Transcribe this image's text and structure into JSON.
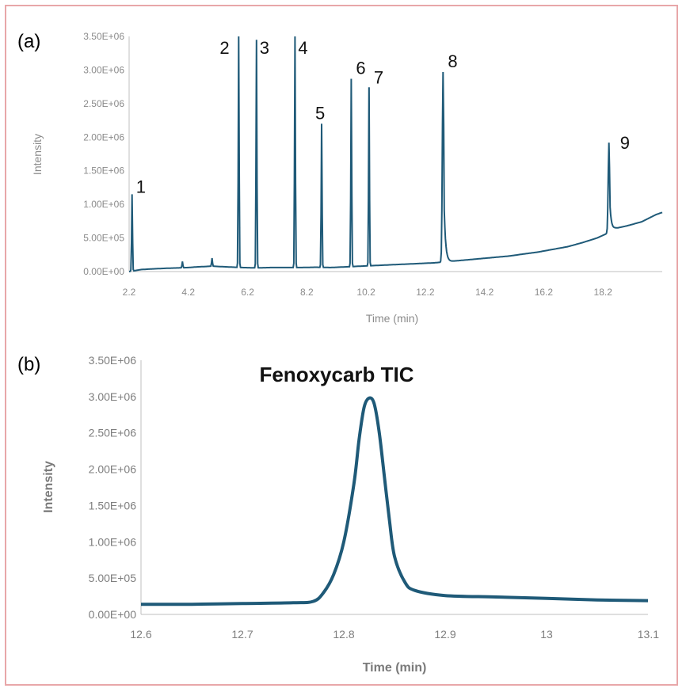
{
  "panels": {
    "a_label": "(a)",
    "b_label": "(b)"
  },
  "colors": {
    "line": "#1f5a78",
    "axis": "#bfbfbf",
    "frame": "#e8a7a9"
  },
  "chart_data": [
    {
      "type": "line",
      "panel": "(a)",
      "title": "",
      "xlabel": "Time (min)",
      "ylabel": "Intensity",
      "xlim": [
        2.2,
        20.2
      ],
      "ylim": [
        0,
        3500000
      ],
      "x_ticks": [
        2.2,
        4.2,
        6.2,
        8.2,
        10.2,
        12.2,
        14.2,
        16.2,
        18.2
      ],
      "x_tick_labels": [
        "2.2",
        "4.2",
        "6.2",
        "8.2",
        "10.2",
        "12.2",
        "14.2",
        "16.2",
        "18.2"
      ],
      "y_ticks": [
        0,
        500000,
        1000000,
        1500000,
        2000000,
        2500000,
        3000000,
        3500000
      ],
      "y_tick_labels": [
        "0.00E+00",
        "5.00E+05",
        "1.00E+06",
        "1.50E+06",
        "2.00E+06",
        "2.50E+06",
        "3.00E+06",
        "3.50E+06"
      ],
      "baseline": [
        [
          2.2,
          0
        ],
        [
          2.6,
          30000
        ],
        [
          3.0,
          40000
        ],
        [
          3.5,
          50000
        ],
        [
          3.9,
          55000
        ],
        [
          4.2,
          60000
        ],
        [
          4.5,
          70000
        ],
        [
          5.0,
          80000
        ],
        [
          5.5,
          70000
        ],
        [
          6.0,
          60000
        ],
        [
          6.5,
          55000
        ],
        [
          7.0,
          60000
        ],
        [
          7.5,
          60000
        ],
        [
          8.0,
          60000
        ],
        [
          8.5,
          65000
        ],
        [
          9.0,
          60000
        ],
        [
          9.5,
          70000
        ],
        [
          10.0,
          80000
        ],
        [
          10.5,
          90000
        ],
        [
          11.0,
          100000
        ],
        [
          11.5,
          110000
        ],
        [
          12.0,
          120000
        ],
        [
          12.5,
          130000
        ],
        [
          13.0,
          150000
        ],
        [
          13.5,
          170000
        ],
        [
          14.0,
          190000
        ],
        [
          14.5,
          210000
        ],
        [
          15.0,
          230000
        ],
        [
          15.5,
          260000
        ],
        [
          16.0,
          290000
        ],
        [
          16.5,
          330000
        ],
        [
          17.0,
          370000
        ],
        [
          17.5,
          430000
        ],
        [
          18.0,
          500000
        ],
        [
          18.3,
          560000
        ],
        [
          18.6,
          640000
        ],
        [
          19.0,
          680000
        ],
        [
          19.5,
          740000
        ],
        [
          20.0,
          850000
        ],
        [
          20.2,
          880000
        ]
      ],
      "minor_peaks": [
        {
          "x": 4.0,
          "y": 150000
        },
        {
          "x": 5.0,
          "y": 200000
        }
      ],
      "peaks": [
        {
          "label": "1",
          "x": 2.3,
          "y": 1150000
        },
        {
          "label": "2",
          "x": 5.9,
          "y": 3500000
        },
        {
          "label": "3",
          "x": 6.5,
          "y": 3450000
        },
        {
          "label": "4",
          "x": 7.8,
          "y": 3500000
        },
        {
          "label": "5",
          "x": 8.7,
          "y": 2200000
        },
        {
          "label": "6",
          "x": 9.7,
          "y": 2870000
        },
        {
          "label": "7",
          "x": 10.3,
          "y": 2730000
        },
        {
          "label": "8",
          "x": 12.8,
          "y": 2970000
        },
        {
          "label": "9",
          "x": 18.4,
          "y": 1920000
        }
      ]
    },
    {
      "type": "line",
      "panel": "(b)",
      "title": "Fenoxycarb TIC",
      "xlabel": "Time (min)",
      "ylabel": "Intensity",
      "xlim": [
        12.6,
        13.1
      ],
      "ylim": [
        0,
        3500000
      ],
      "x_ticks": [
        12.6,
        12.7,
        12.8,
        12.9,
        13.0,
        13.1
      ],
      "x_tick_labels": [
        "12.6",
        "12.7",
        "12.8",
        "12.9",
        "13",
        "13.1"
      ],
      "y_ticks": [
        0,
        500000,
        1000000,
        1500000,
        2000000,
        2500000,
        3000000,
        3500000
      ],
      "y_tick_labels": [
        "0.00E+00",
        "5.00E+05",
        "1.00E+06",
        "1.50E+06",
        "2.00E+06",
        "2.50E+06",
        "3.00E+06",
        "3.50E+06"
      ],
      "points": [
        [
          12.6,
          140000
        ],
        [
          12.65,
          140000
        ],
        [
          12.7,
          150000
        ],
        [
          12.75,
          160000
        ],
        [
          12.77,
          180000
        ],
        [
          12.78,
          300000
        ],
        [
          12.79,
          550000
        ],
        [
          12.8,
          1000000
        ],
        [
          12.81,
          1800000
        ],
        [
          12.815,
          2400000
        ],
        [
          12.82,
          2850000
        ],
        [
          12.825,
          2980000
        ],
        [
          12.83,
          2900000
        ],
        [
          12.835,
          2500000
        ],
        [
          12.84,
          1900000
        ],
        [
          12.845,
          1300000
        ],
        [
          12.85,
          800000
        ],
        [
          12.86,
          450000
        ],
        [
          12.87,
          330000
        ],
        [
          12.9,
          260000
        ],
        [
          12.95,
          240000
        ],
        [
          13.0,
          220000
        ],
        [
          13.05,
          200000
        ],
        [
          13.1,
          190000
        ]
      ]
    }
  ]
}
